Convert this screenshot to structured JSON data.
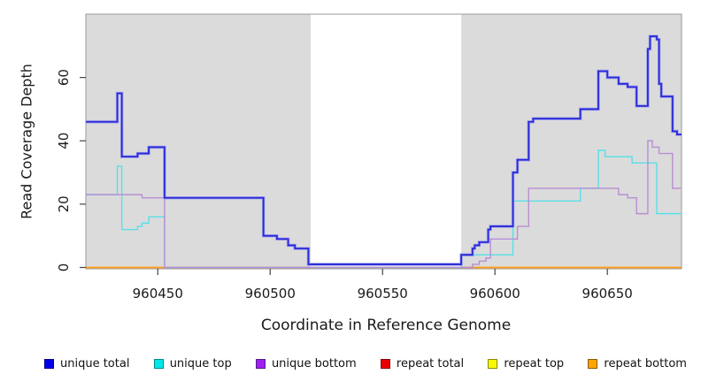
{
  "figure": {
    "x_axis_title": "Coordinate in Reference Genome",
    "y_axis_title": "Read Coverage Depth"
  },
  "chart_data": {
    "type": "line",
    "step": true,
    "title": "",
    "xlabel": "Coordinate in Reference Genome",
    "ylabel": "Read Coverage Depth",
    "xlim": [
      960418,
      960683
    ],
    "ylim": [
      0,
      80
    ],
    "x_ticks": [
      960450,
      960500,
      960550,
      960600,
      960650
    ],
    "y_ticks": [
      0,
      20,
      40,
      60
    ],
    "grid": false,
    "legend_position": "bottom",
    "background_panels": [
      {
        "from": 960418,
        "to": 960518,
        "color": "#dbdbdb"
      },
      {
        "from": 960518,
        "to": 960585,
        "color": "#ffffff"
      },
      {
        "from": 960585,
        "to": 960683,
        "color": "#dbdbdb"
      }
    ],
    "panel_note": "gray panels flank a white highlighted region 960518-960585; all repeat-coverage series are 0 across the full range",
    "series": [
      {
        "name": "repeat total",
        "color": "#dd4444",
        "width": 1.2,
        "points": [
          [
            960418,
            0
          ]
        ]
      },
      {
        "name": "repeat top",
        "color": "#f0f000",
        "width": 1.2,
        "points": [
          [
            960418,
            0
          ]
        ]
      },
      {
        "name": "repeat bottom",
        "color": "#ff9f1c",
        "width": 1.7,
        "points": [
          [
            960418,
            0
          ]
        ]
      },
      {
        "name": "unique top",
        "color": "#58dfe8",
        "width": 1.4,
        "points": [
          [
            960418,
            23
          ],
          [
            960432,
            32
          ],
          [
            960434,
            12
          ],
          [
            960441,
            13
          ],
          [
            960443,
            14
          ],
          [
            960446,
            16
          ],
          [
            960453,
            0
          ],
          [
            960585,
            4
          ],
          [
            960608,
            21
          ],
          [
            960638,
            25
          ],
          [
            960646,
            37
          ],
          [
            960649,
            35
          ],
          [
            960661,
            33
          ],
          [
            960672,
            17
          ]
        ]
      },
      {
        "name": "unique bottom",
        "color": "#b78ed6",
        "width": 1.4,
        "points": [
          [
            960418,
            23
          ],
          [
            960443,
            22
          ],
          [
            960453,
            0
          ],
          [
            960590,
            1
          ],
          [
            960593,
            2
          ],
          [
            960596,
            3
          ],
          [
            960598,
            9
          ],
          [
            960610,
            13
          ],
          [
            960615,
            25
          ],
          [
            960655,
            23
          ],
          [
            960659,
            22
          ],
          [
            960663,
            17
          ],
          [
            960668,
            40
          ],
          [
            960670,
            38
          ],
          [
            960673,
            36
          ],
          [
            960679,
            25
          ]
        ]
      },
      {
        "name": "unique total",
        "color": "#2a2ad6",
        "halo": "#9f9fee",
        "width": 1.8,
        "points": [
          [
            960418,
            46
          ],
          [
            960432,
            55
          ],
          [
            960434,
            35
          ],
          [
            960441,
            36
          ],
          [
            960446,
            38
          ],
          [
            960453,
            22
          ],
          [
            960497,
            10
          ],
          [
            960503,
            9
          ],
          [
            960508,
            7
          ],
          [
            960511,
            6
          ],
          [
            960517,
            1
          ],
          [
            960585,
            4
          ],
          [
            960590,
            6
          ],
          [
            960591,
            7
          ],
          [
            960593,
            8
          ],
          [
            960597,
            12
          ],
          [
            960598,
            13
          ],
          [
            960608,
            30
          ],
          [
            960610,
            34
          ],
          [
            960615,
            46
          ],
          [
            960617,
            47
          ],
          [
            960638,
            50
          ],
          [
            960646,
            62
          ],
          [
            960650,
            60
          ],
          [
            960655,
            58
          ],
          [
            960659,
            57
          ],
          [
            960663,
            51
          ],
          [
            960668,
            69
          ],
          [
            960669,
            73
          ],
          [
            960672,
            72
          ],
          [
            960673,
            58
          ],
          [
            960674,
            54
          ],
          [
            960679,
            43
          ],
          [
            960681,
            42
          ]
        ]
      }
    ]
  },
  "legend": {
    "items": [
      {
        "label": "unique total",
        "color": "#0000e8",
        "border": "#00008b"
      },
      {
        "label": "unique top",
        "color": "#00e8e8",
        "border": "#008b8b"
      },
      {
        "label": "unique bottom",
        "color": "#a020f0",
        "border": "#551a8b"
      },
      {
        "label": "repeat total",
        "color": "#e80000",
        "border": "#8b0000"
      },
      {
        "label": "repeat top",
        "color": "#f8f800",
        "border": "#8b8b00"
      },
      {
        "label": "repeat bottom",
        "color": "#ffa500",
        "border": "#8b5a00"
      }
    ]
  }
}
